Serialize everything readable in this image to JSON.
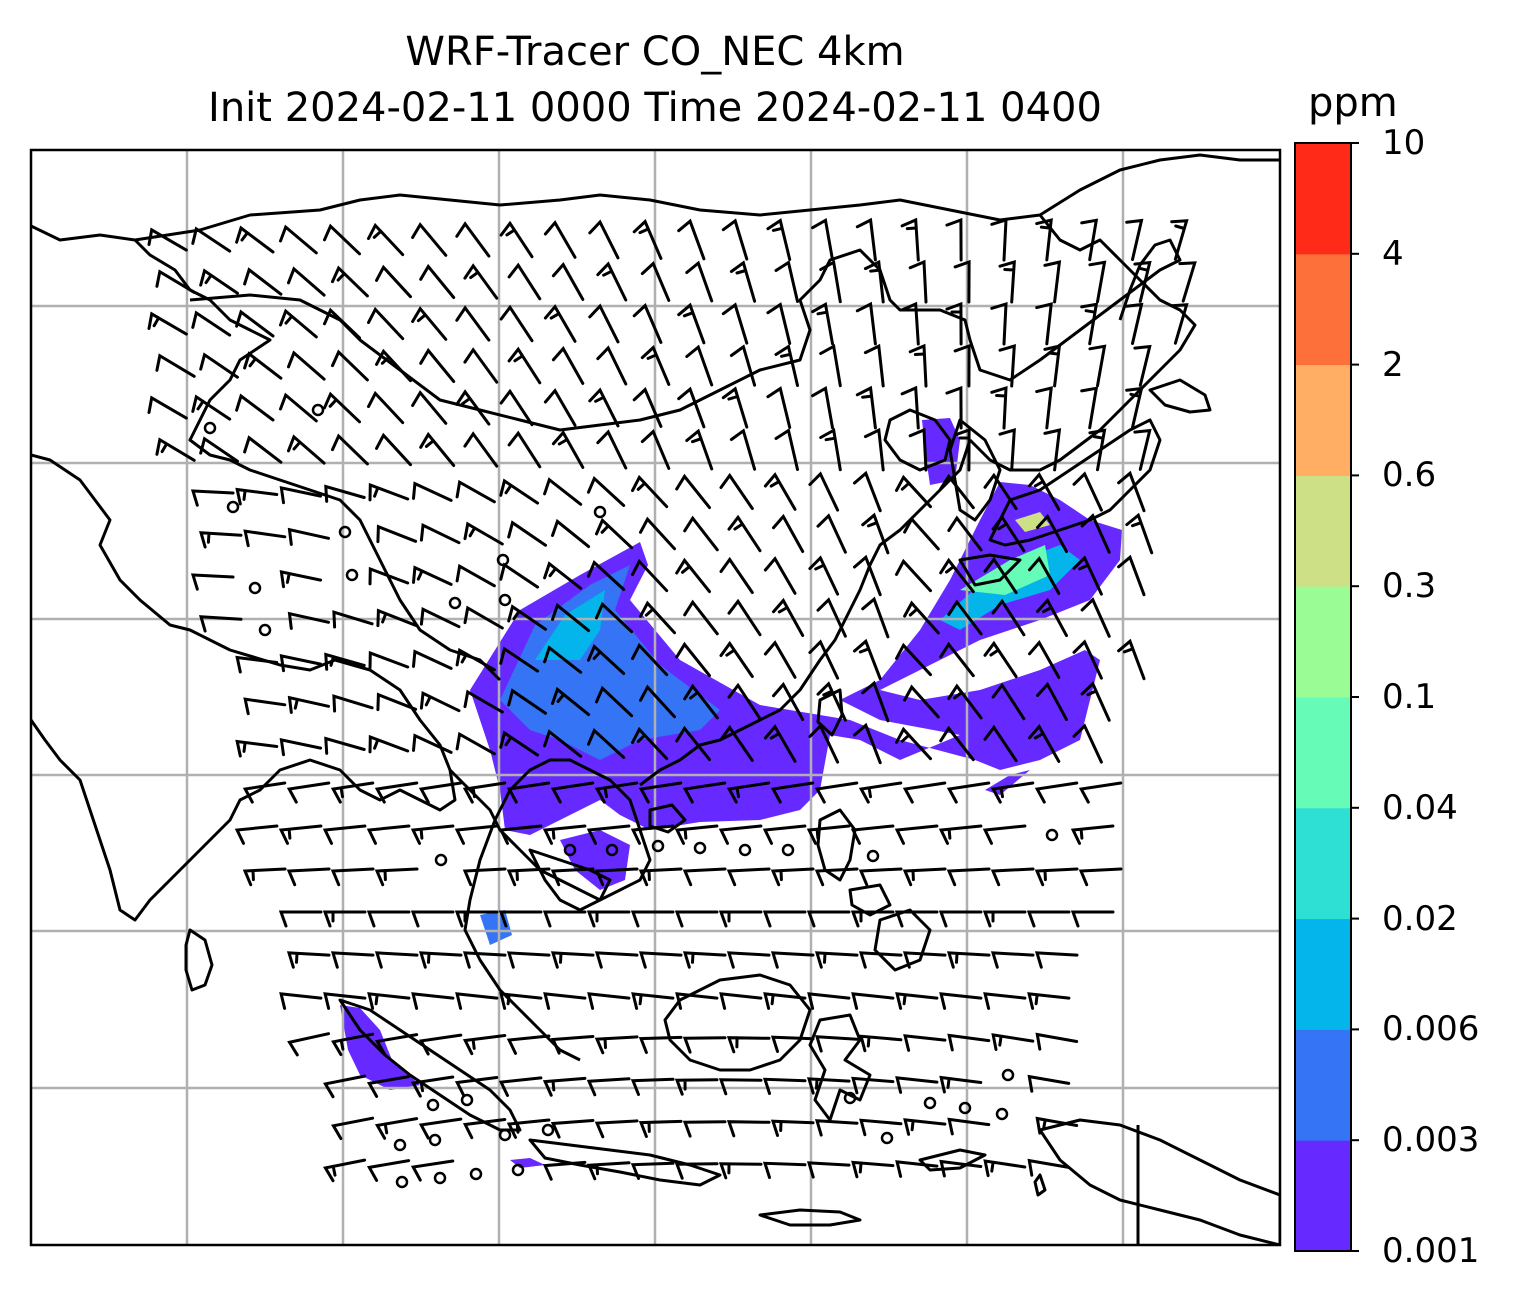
{
  "title": {
    "line1": "WRF-Tracer CO_NEC 4km",
    "line2": "Init 2024-02-11 0000 Time 2024-02-11 0400"
  },
  "colorbar": {
    "unit": "ppm",
    "levels": [
      "0.001",
      "0.003",
      "0.006",
      "0.02",
      "0.04",
      "0.1",
      "0.3",
      "0.6",
      "2",
      "4",
      "10"
    ],
    "colors": [
      "#6629ff",
      "#3574f5",
      "#03b5ea",
      "#2ee0d4",
      "#66fcb8",
      "#9afc95",
      "#cde085",
      "#ffae63",
      "#fe7039",
      "#ff2a17"
    ]
  },
  "map": {
    "gridlines": true,
    "coastline_color": "#000000",
    "grid_color": "#b0b0b0",
    "wind_barbs": true,
    "calm_marker": "circle"
  }
}
